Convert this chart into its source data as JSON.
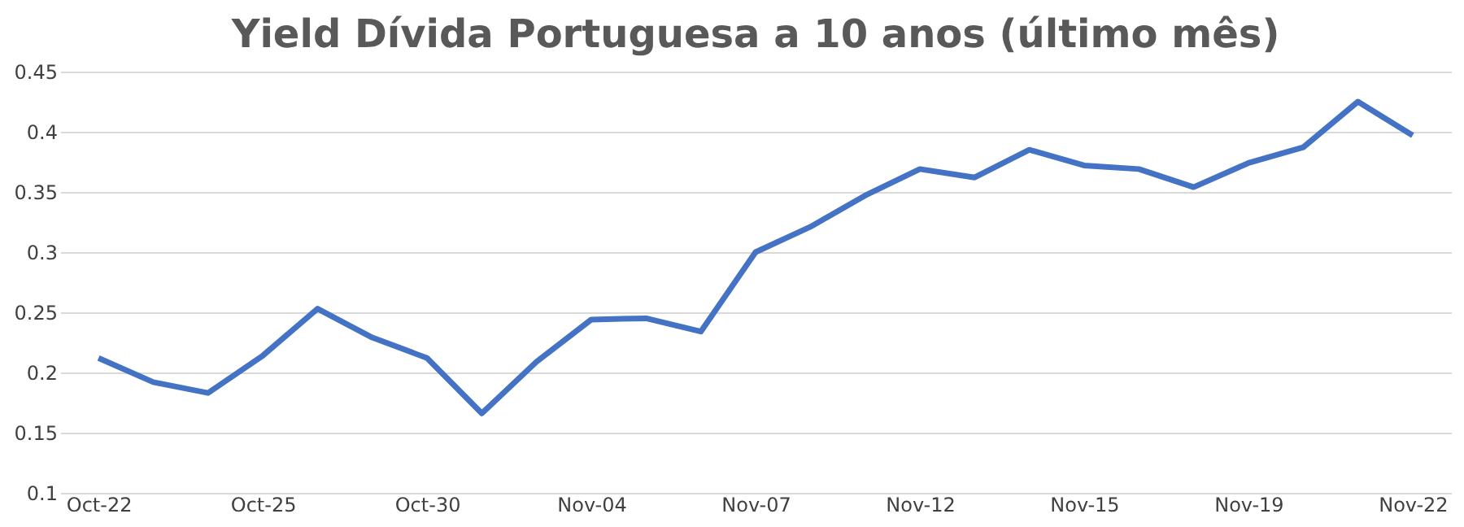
{
  "chart_data": {
    "type": "line",
    "title": "Yield Dívida Portuguesa a 10 anos (último mês)",
    "categories": [
      "Oct-22",
      null,
      null,
      "Oct-25",
      null,
      null,
      "Oct-30",
      null,
      null,
      "Nov-04",
      null,
      null,
      "Nov-07",
      null,
      null,
      "Nov-12",
      null,
      null,
      "Nov-15",
      null,
      null,
      "Nov-19",
      null,
      null,
      "Nov-22"
    ],
    "series": [
      {
        "color": "#4472c4",
        "values": [
          0.212,
          0.192,
          0.183,
          0.214,
          0.253,
          0.229,
          0.212,
          0.166,
          0.209,
          0.244,
          0.245,
          0.234,
          0.3,
          0.321,
          0.347,
          0.369,
          0.362,
          0.385,
          0.372,
          0.369,
          0.354,
          0.374,
          0.387,
          0.425,
          0.397
        ]
      }
    ],
    "ylim": [
      0.1,
      0.45
    ],
    "yticks": [
      0.1,
      0.15,
      0.2,
      0.25,
      0.3,
      0.35,
      0.4,
      0.45
    ],
    "grid": "y",
    "marker": "none",
    "line_style": "solid"
  }
}
